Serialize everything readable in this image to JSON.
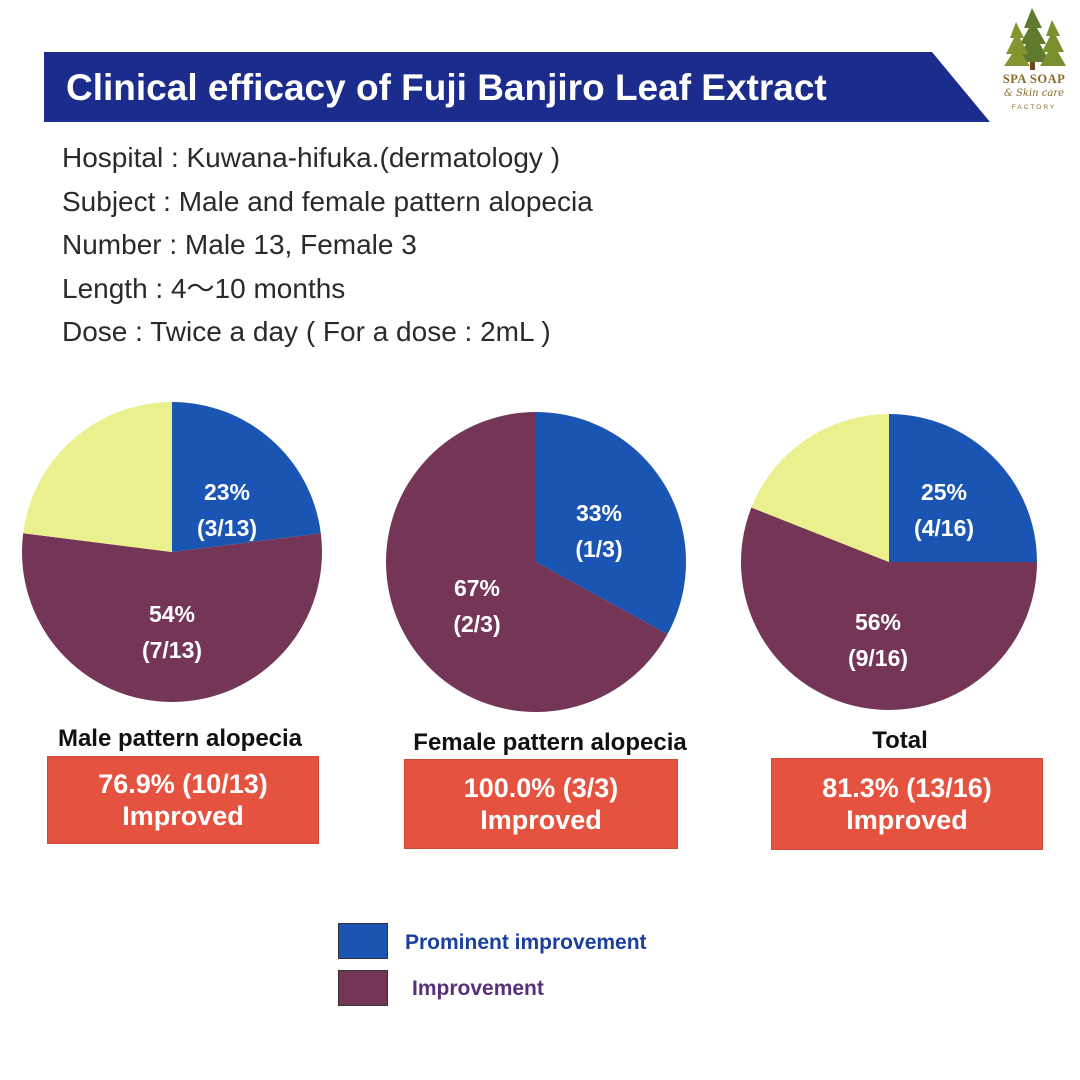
{
  "title": "Clinical efficacy of Fuji Banjiro Leaf Extract",
  "logo": {
    "line1": "SPA SOAP",
    "line2": "& Skin care",
    "line3": "FACTORY",
    "icon": "pine-trees-icon"
  },
  "info": [
    "Hospital : Kuwana-hifuka.(dermatology )",
    "Subject : Male and female pattern alopecia",
    "Number : Male 13, Female 3",
    "Length : 4〜10 months",
    "Dose : Twice a day ( For a dose : 2mL )"
  ],
  "colors": {
    "banner": "#1c2c8c",
    "prominent": "#1a55b4",
    "improvement": "#743557",
    "other": "#ebf08e",
    "result_box": "#e5523f"
  },
  "chart_data": [
    {
      "type": "pie",
      "title": "Male pattern alopecia",
      "slices": [
        {
          "category": "Prominent improvement",
          "value": 23,
          "label": "23%",
          "sublabel": "(3/13)"
        },
        {
          "category": "Improvement",
          "value": 54,
          "label": "54%",
          "sublabel": "(7/13)"
        },
        {
          "category": "",
          "value": 23,
          "label": "",
          "sublabel": ""
        }
      ],
      "result_line1": "76.9% (10/13)",
      "result_line2": "Improved"
    },
    {
      "type": "pie",
      "title": "Female pattern alopecia",
      "slices": [
        {
          "category": "Prominent improvement",
          "value": 33,
          "label": "33%",
          "sublabel": "(1/3)"
        },
        {
          "category": "Improvement",
          "value": 67,
          "label": "67%",
          "sublabel": "(2/3)"
        }
      ],
      "result_line1": "100.0% (3/3)",
      "result_line2": "Improved"
    },
    {
      "type": "pie",
      "title": "Total",
      "slices": [
        {
          "category": "Prominent improvement",
          "value": 25,
          "label": "25%",
          "sublabel": "(4/16)"
        },
        {
          "category": "Improvement",
          "value": 56,
          "label": "56%",
          "sublabel": "(9/16)"
        },
        {
          "category": "",
          "value": 19,
          "label": "",
          "sublabel": ""
        }
      ],
      "result_line1": "81.3% (13/16)",
      "result_line2": "Improved"
    }
  ],
  "legend": [
    {
      "label": "Prominent improvement",
      "color": "#1a55b4",
      "text_color": "#1a3f9c"
    },
    {
      "label": "Improvement",
      "color": "#743557",
      "text_color": "#5a2f7a"
    }
  ]
}
